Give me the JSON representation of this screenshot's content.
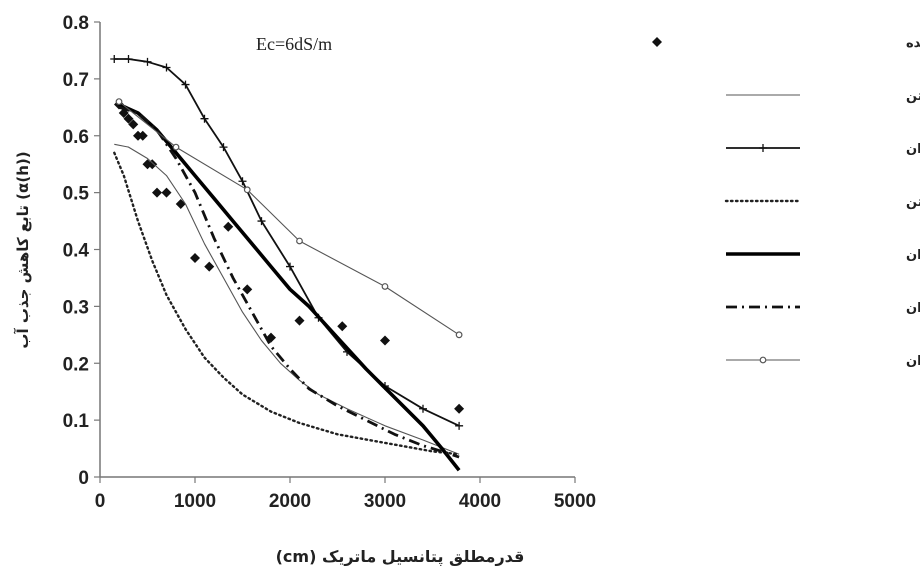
{
  "chart_data": {
    "type": "line",
    "annotation": "Ec=6dS/m",
    "xlabel": "قدرمطلق پتانسیل ماتریک (cm)",
    "ylabel": "(α(h)) تابع کاهش جذب آب",
    "xlim": [
      0,
      5000
    ],
    "ylim": [
      0,
      0.8
    ],
    "xticks": [
      "0",
      "1000",
      "2000",
      "3000",
      "4000",
      "5000"
    ],
    "yticks": [
      "0",
      "0.1",
      "0.2",
      "0.3",
      "0.4",
      "0.5",
      "0.6",
      "0.7",
      "0.8"
    ],
    "legend_position": "right",
    "series": [
      {
        "name": "داده های اندازه گیری شده",
        "style": "points",
        "color": "#111111",
        "points": [
          [
            200,
            0.655
          ],
          [
            250,
            0.64
          ],
          [
            300,
            0.63
          ],
          [
            350,
            0.62
          ],
          [
            400,
            0.6
          ],
          [
            450,
            0.6
          ],
          [
            500,
            0.55
          ],
          [
            550,
            0.55
          ],
          [
            600,
            0.5
          ],
          [
            700,
            0.5
          ],
          [
            850,
            0.48
          ],
          [
            1000,
            0.385
          ],
          [
            1150,
            0.37
          ],
          [
            1350,
            0.44
          ],
          [
            1550,
            0.33
          ],
          [
            1800,
            0.245
          ],
          [
            2100,
            0.275
          ],
          [
            2550,
            0.265
          ],
          [
            3000,
            0.24
          ],
          [
            3780,
            0.12
          ]
        ]
      },
      {
        "name": "مدل ون گنوختن",
        "style": "thin",
        "color": "#444444",
        "points": [
          [
            150,
            0.585
          ],
          [
            300,
            0.58
          ],
          [
            500,
            0.56
          ],
          [
            700,
            0.53
          ],
          [
            900,
            0.48
          ],
          [
            1100,
            0.41
          ],
          [
            1300,
            0.35
          ],
          [
            1500,
            0.29
          ],
          [
            1700,
            0.24
          ],
          [
            1900,
            0.2
          ],
          [
            2100,
            0.17
          ],
          [
            2300,
            0.145
          ],
          [
            2600,
            0.12
          ],
          [
            3000,
            0.09
          ],
          [
            3400,
            0.065
          ],
          [
            3780,
            0.04
          ]
        ]
      },
      {
        "name": "مدل دیرکسن و همکاران",
        "style": "plus",
        "color": "#111111",
        "points": [
          [
            150,
            0.735
          ],
          [
            300,
            0.735
          ],
          [
            500,
            0.73
          ],
          [
            700,
            0.72
          ],
          [
            900,
            0.69
          ],
          [
            1100,
            0.63
          ],
          [
            1300,
            0.58
          ],
          [
            1500,
            0.52
          ],
          [
            1700,
            0.45
          ],
          [
            2000,
            0.37
          ],
          [
            2300,
            0.28
          ],
          [
            2600,
            0.22
          ],
          [
            3000,
            0.16
          ],
          [
            3400,
            0.12
          ],
          [
            3780,
            0.09
          ]
        ]
      },
      {
        "name": "مدل جمع پذیر ون گنوختن",
        "style": "dotted",
        "color": "#222222",
        "points": [
          [
            150,
            0.57
          ],
          [
            250,
            0.53
          ],
          [
            400,
            0.45
          ],
          [
            550,
            0.38
          ],
          [
            700,
            0.32
          ],
          [
            900,
            0.26
          ],
          [
            1100,
            0.21
          ],
          [
            1300,
            0.175
          ],
          [
            1500,
            0.145
          ],
          [
            1800,
            0.115
          ],
          [
            2100,
            0.095
          ],
          [
            2500,
            0.075
          ],
          [
            3000,
            0.06
          ],
          [
            3500,
            0.045
          ],
          [
            3780,
            0.04
          ]
        ]
      },
      {
        "name": "مدل همامی و همکاران",
        "style": "thick",
        "color": "#000000",
        "points": [
          [
            200,
            0.655
          ],
          [
            400,
            0.64
          ],
          [
            600,
            0.61
          ],
          [
            800,
            0.57
          ],
          [
            1000,
            0.53
          ],
          [
            1200,
            0.49
          ],
          [
            1400,
            0.45
          ],
          [
            1600,
            0.41
          ],
          [
            1800,
            0.37
          ],
          [
            2000,
            0.33
          ],
          [
            2200,
            0.3
          ],
          [
            2500,
            0.245
          ],
          [
            2800,
            0.19
          ],
          [
            3100,
            0.14
          ],
          [
            3400,
            0.09
          ],
          [
            3600,
            0.05
          ],
          [
            3780,
            0.012
          ]
        ]
      },
      {
        "name": "مدل سکگز و همکاران",
        "style": "dashdot",
        "color": "#111111",
        "points": [
          [
            200,
            0.65
          ],
          [
            400,
            0.64
          ],
          [
            600,
            0.61
          ],
          [
            800,
            0.56
          ],
          [
            1000,
            0.5
          ],
          [
            1200,
            0.42
          ],
          [
            1400,
            0.35
          ],
          [
            1600,
            0.29
          ],
          [
            1800,
            0.23
          ],
          [
            2000,
            0.19
          ],
          [
            2200,
            0.155
          ],
          [
            2500,
            0.125
          ],
          [
            2800,
            0.1
          ],
          [
            3100,
            0.075
          ],
          [
            3400,
            0.055
          ],
          [
            3600,
            0.045
          ],
          [
            3780,
            0.035
          ]
        ]
      },
      {
        "name": "مدل ون دام و همکاران",
        "style": "circle",
        "color": "#555555",
        "points": [
          [
            200,
            0.66
          ],
          [
            800,
            0.58
          ],
          [
            1550,
            0.505
          ],
          [
            2100,
            0.415
          ],
          [
            3000,
            0.335
          ],
          [
            3780,
            0.25
          ]
        ]
      }
    ]
  }
}
